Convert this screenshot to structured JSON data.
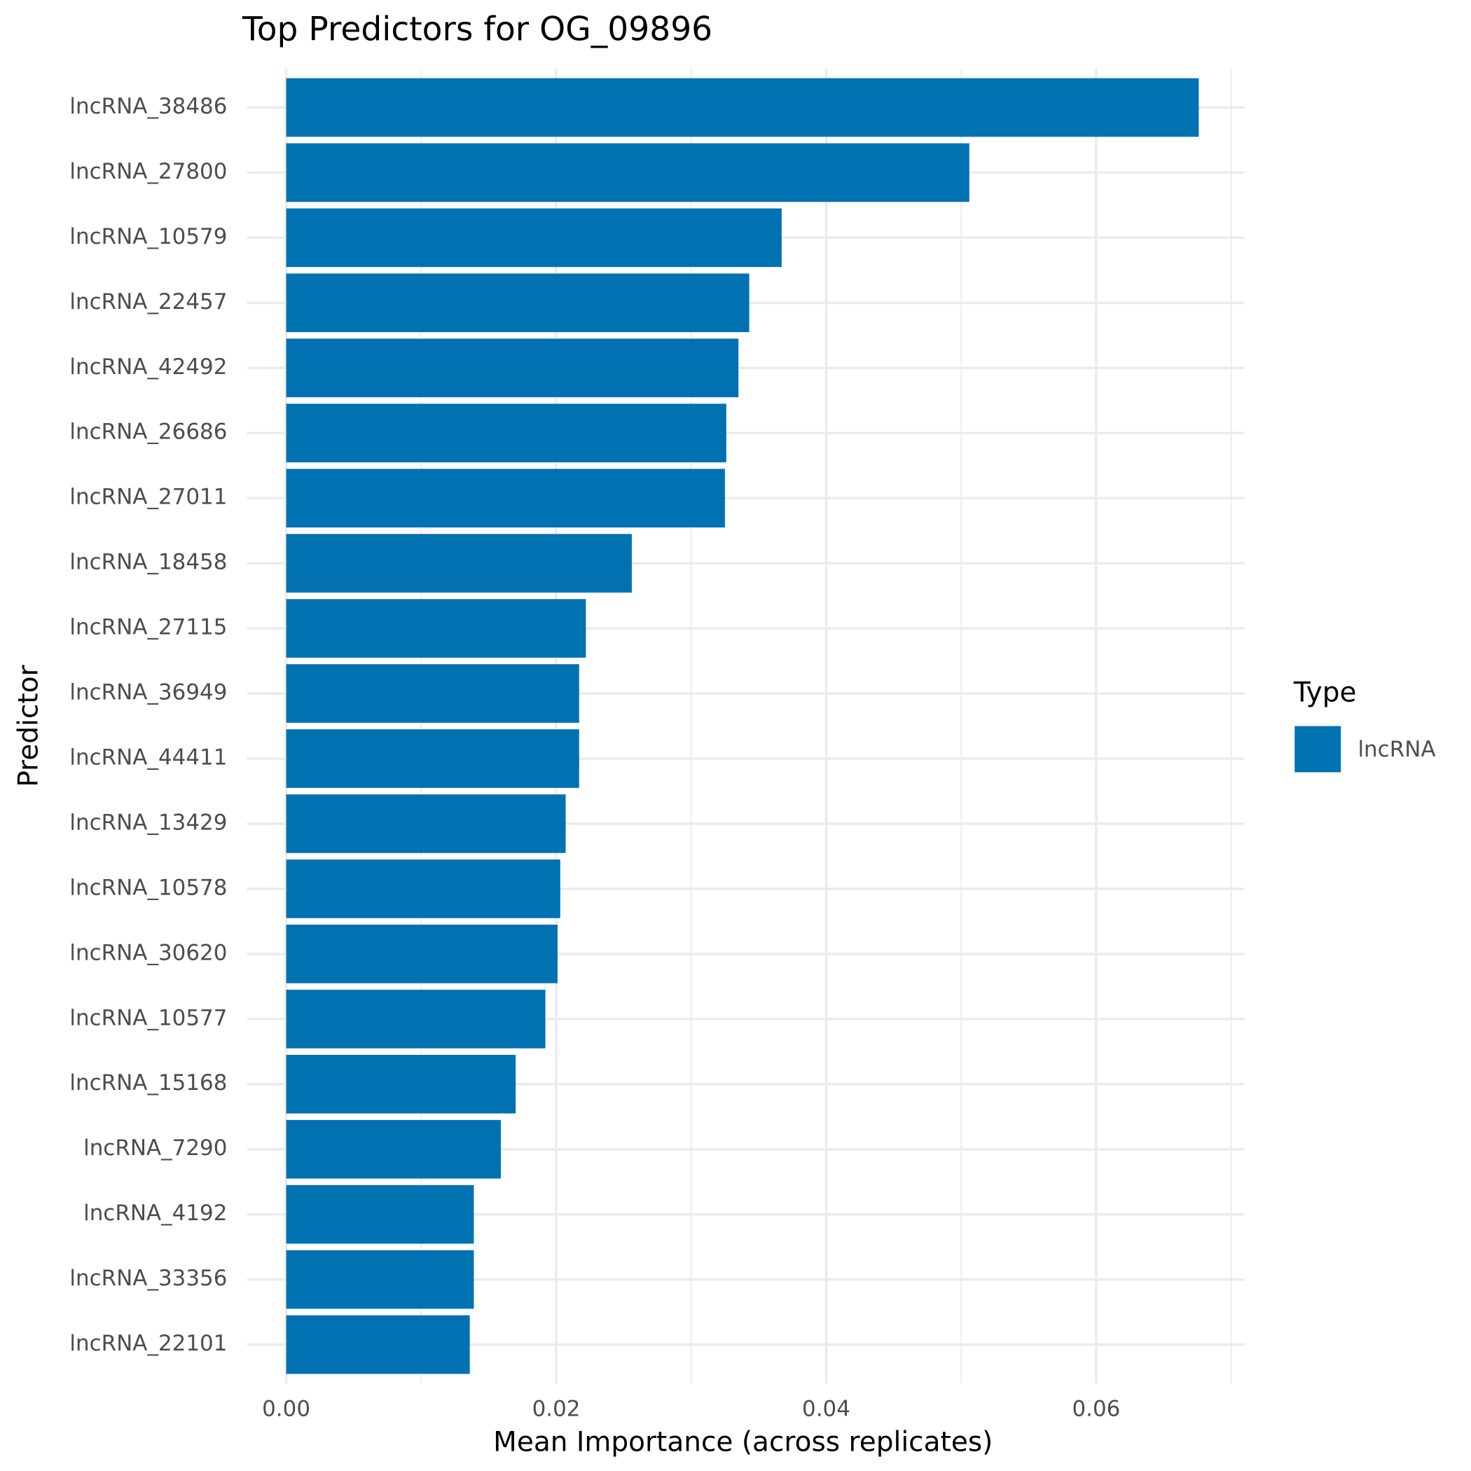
{
  "chart_data": {
    "type": "bar",
    "orientation": "horizontal",
    "title": "Top Predictors for OG_09896",
    "x_label": "Mean Importance (across replicates)",
    "y_label": "Predictor",
    "categories": [
      "lncRNA_38486",
      "lncRNA_27800",
      "lncRNA_10579",
      "lncRNA_22457",
      "lncRNA_42492",
      "lncRNA_26686",
      "lncRNA_27011",
      "lncRNA_18458",
      "lncRNA_27115",
      "lncRNA_36949",
      "lncRNA_44411",
      "lncRNA_13429",
      "lncRNA_10578",
      "lncRNA_30620",
      "lncRNA_10577",
      "lncRNA_15168",
      "lncRNA_7290",
      "lncRNA_4192",
      "lncRNA_33356",
      "lncRNA_22101"
    ],
    "series": [
      {
        "name": "lncRNA",
        "color": "#0072b2",
        "values": [
          0.0676,
          0.0506,
          0.0367,
          0.0343,
          0.0335,
          0.0326,
          0.0325,
          0.0256,
          0.0222,
          0.0217,
          0.0217,
          0.0207,
          0.0203,
          0.0201,
          0.0192,
          0.017,
          0.0159,
          0.0139,
          0.0139,
          0.0136
        ]
      }
    ],
    "legend_title": "Type",
    "legend_position": "right",
    "xlim": [
      -0.0029,
      0.071
    ],
    "xticks": [
      {
        "value": 0,
        "label": "0.00"
      },
      {
        "value": 0.02,
        "label": "0.02"
      },
      {
        "value": 0.04,
        "label": "0.04"
      },
      {
        "value": 0.06,
        "label": "0.06"
      }
    ],
    "xminorticks": [
      0.01,
      0.03,
      0.05,
      0.07
    ],
    "grid": true
  }
}
